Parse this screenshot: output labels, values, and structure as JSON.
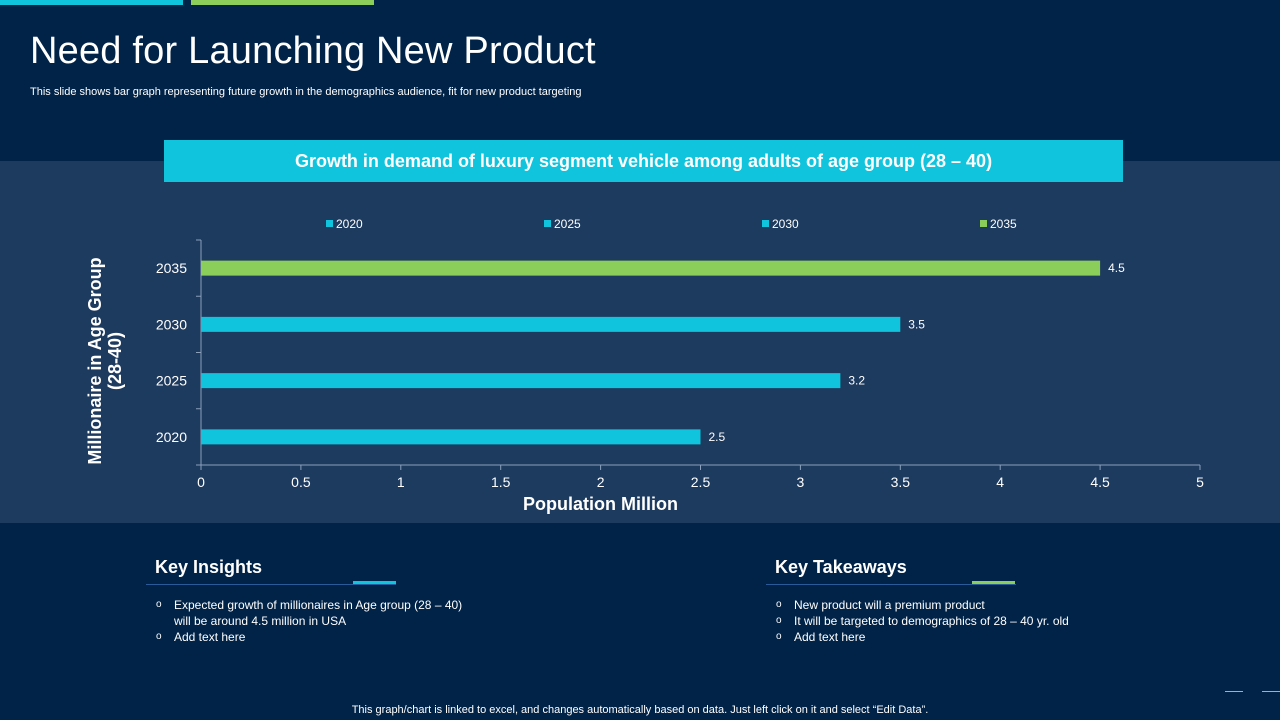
{
  "slide": {
    "title": "Need for Launching New Product",
    "subtitle": "This slide shows bar graph representing future growth in the demographics audience, fit for new product targeting",
    "footer": "This graph/chart is linked to excel,  and changes automatically based on data. Just left click on it and select “Edit Data”."
  },
  "colors": {
    "background": "#012348",
    "panel": "#1d3a5f",
    "cyan": "#11c4dd",
    "green": "#8bcf5a"
  },
  "chart_data": {
    "type": "bar",
    "orientation": "horizontal",
    "title": "Growth in demand of luxury segment vehicle among adults of age group (28 – 40)",
    "xlabel": "Population Million",
    "ylabel": "Millionaire in Age Group (28-40)",
    "ylabel_lines": [
      "Millionaire in Age Group",
      "(28-40)"
    ],
    "categories": [
      "2020",
      "2025",
      "2030",
      "2035"
    ],
    "values": [
      2.5,
      3.2,
      3.5,
      4.5
    ],
    "value_labels": [
      "2.5",
      "3.2",
      "3.5",
      "4.5"
    ],
    "bar_colors": [
      "#11c4dd",
      "#11c4dd",
      "#11c4dd",
      "#8bcf5a"
    ],
    "xlim": [
      0,
      5
    ],
    "xticks": [
      0,
      0.5,
      1,
      1.5,
      2,
      2.5,
      3,
      3.5,
      4,
      4.5,
      5
    ],
    "xtick_labels": [
      "0",
      "0.5",
      "1",
      "1.5",
      "2",
      "2.5",
      "3",
      "3.5",
      "4",
      "4.5",
      "5"
    ],
    "legend": [
      {
        "name": "2020",
        "color": "#11c4dd"
      },
      {
        "name": "2025",
        "color": "#11c4dd"
      },
      {
        "name": "2030",
        "color": "#11c4dd"
      },
      {
        "name": "2035",
        "color": "#8bcf5a"
      }
    ],
    "legend_position": "top",
    "grid": false
  },
  "insights": {
    "title": "Key Insights",
    "items": [
      "Expected growth of millionaires in Age group (28 – 40) will be around  4.5 million in USA",
      "Add text here"
    ]
  },
  "takeaways": {
    "title": "Key Takeaways",
    "items": [
      "New product will a premium product",
      "It will be targeted to demographics  of 28 – 40 yr. old",
      "Add text here"
    ]
  }
}
